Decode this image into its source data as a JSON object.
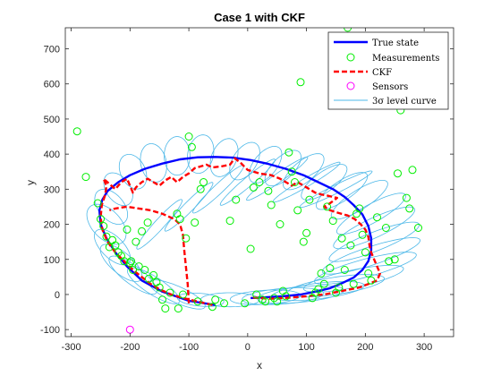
{
  "chart_data": {
    "type": "line",
    "title": "Case 1 with CKF",
    "xlabel": "x",
    "ylabel": "y",
    "xlim": [
      -310,
      350
    ],
    "ylim": [
      -120,
      760
    ],
    "xticks": [
      -300,
      -200,
      -100,
      0,
      100,
      200,
      300
    ],
    "yticks": [
      -100,
      0,
      100,
      200,
      300,
      400,
      500,
      600,
      700
    ],
    "grid": false,
    "legend_position": "top-right",
    "colors": {
      "true_state": "#0000ff",
      "measurements": "#00ee00",
      "ckf": "#ff0000",
      "sensors": "#ff00ff",
      "level_curve": "#4db8e8"
    },
    "series": [
      {
        "name": "True state",
        "points": [
          [
            -55,
            -30
          ],
          [
            -100,
            -18
          ],
          [
            -145,
            8
          ],
          [
            -180,
            40
          ],
          [
            -205,
            80
          ],
          [
            -225,
            120
          ],
          [
            -240,
            160
          ],
          [
            -250,
            200
          ],
          [
            -252,
            240
          ],
          [
            -247,
            270
          ],
          [
            -238,
            295
          ],
          [
            -220,
            320
          ],
          [
            -200,
            340
          ],
          [
            -175,
            358
          ],
          [
            -145,
            373
          ],
          [
            -115,
            385
          ],
          [
            -85,
            391
          ],
          [
            -55,
            392
          ],
          [
            -25,
            390
          ],
          [
            5,
            383
          ],
          [
            35,
            372
          ],
          [
            65,
            358
          ],
          [
            95,
            340
          ],
          [
            120,
            320
          ],
          [
            145,
            300
          ],
          [
            165,
            278
          ],
          [
            180,
            255
          ],
          [
            195,
            228
          ],
          [
            205,
            195
          ],
          [
            210,
            160
          ],
          [
            210,
            125
          ],
          [
            205,
            95
          ],
          [
            195,
            70
          ],
          [
            180,
            48
          ],
          [
            160,
            32
          ],
          [
            140,
            18
          ],
          [
            115,
            8
          ],
          [
            90,
            0
          ],
          [
            60,
            -5
          ],
          [
            30,
            -8
          ],
          [
            5,
            -10
          ]
        ]
      },
      {
        "name": "Measurements",
        "points": [
          [
            -290,
            465
          ],
          [
            -275,
            335
          ],
          [
            -255,
            260
          ],
          [
            -250,
            215
          ],
          [
            -245,
            195
          ],
          [
            -240,
            165
          ],
          [
            -235,
            135
          ],
          [
            -230,
            155
          ],
          [
            -225,
            140
          ],
          [
            -220,
            120
          ],
          [
            -215,
            110
          ],
          [
            -210,
            95
          ],
          [
            -205,
            185
          ],
          [
            -200,
            90
          ],
          [
            -198,
            95
          ],
          [
            -195,
            70
          ],
          [
            -190,
            150
          ],
          [
            -185,
            80
          ],
          [
            -180,
            180
          ],
          [
            -175,
            70
          ],
          [
            -170,
            205
          ],
          [
            -168,
            45
          ],
          [
            -160,
            55
          ],
          [
            -155,
            35
          ],
          [
            -150,
            20
          ],
          [
            -145,
            -15
          ],
          [
            -140,
            -40
          ],
          [
            -132,
            5
          ],
          [
            -120,
            230
          ],
          [
            -118,
            -40
          ],
          [
            -115,
            215
          ],
          [
            -110,
            0
          ],
          [
            -105,
            160
          ],
          [
            -100,
            450
          ],
          [
            -95,
            420
          ],
          [
            -90,
            205
          ],
          [
            -85,
            -20
          ],
          [
            -80,
            300
          ],
          [
            -75,
            320
          ],
          [
            -60,
            -35
          ],
          [
            -55,
            -15
          ],
          [
            -40,
            -25
          ],
          [
            -30,
            210
          ],
          [
            -20,
            270
          ],
          [
            -5,
            -25
          ],
          [
            5,
            130
          ],
          [
            10,
            305
          ],
          [
            15,
            0
          ],
          [
            20,
            320
          ],
          [
            25,
            -15
          ],
          [
            30,
            -20
          ],
          [
            35,
            295
          ],
          [
            40,
            255
          ],
          [
            45,
            -10
          ],
          [
            50,
            -20
          ],
          [
            55,
            200
          ],
          [
            60,
            10
          ],
          [
            65,
            -5
          ],
          [
            70,
            405
          ],
          [
            75,
            350
          ],
          [
            80,
            320
          ],
          [
            85,
            240
          ],
          [
            90,
            605
          ],
          [
            95,
            150
          ],
          [
            100,
            175
          ],
          [
            105,
            270
          ],
          [
            110,
            -10
          ],
          [
            115,
            5
          ],
          [
            120,
            15
          ],
          [
            125,
            60
          ],
          [
            130,
            30
          ],
          [
            135,
            250
          ],
          [
            140,
            75
          ],
          [
            145,
            210
          ],
          [
            150,
            5
          ],
          [
            155,
            20
          ],
          [
            160,
            160
          ],
          [
            165,
            70
          ],
          [
            170,
            760
          ],
          [
            175,
            140
          ],
          [
            180,
            30
          ],
          [
            185,
            230
          ],
          [
            190,
            245
          ],
          [
            195,
            170
          ],
          [
            200,
            120
          ],
          [
            205,
            60
          ],
          [
            210,
            40
          ],
          [
            220,
            220
          ],
          [
            235,
            190
          ],
          [
            240,
            95
          ],
          [
            250,
            100
          ],
          [
            255,
            345
          ],
          [
            260,
            525
          ],
          [
            270,
            275
          ],
          [
            275,
            245
          ],
          [
            280,
            355
          ],
          [
            290,
            190
          ]
        ]
      },
      {
        "name": "CKF",
        "points": [
          [
            -60,
            -30
          ],
          [
            -85,
            -20
          ],
          [
            -110,
            -10
          ],
          [
            -130,
            0
          ],
          [
            -150,
            15
          ],
          [
            -165,
            30
          ],
          [
            -180,
            50
          ],
          [
            -195,
            70
          ],
          [
            -210,
            95
          ],
          [
            -225,
            120
          ],
          [
            -238,
            150
          ],
          [
            -247,
            185
          ],
          [
            -250,
            220
          ],
          [
            -248,
            255
          ],
          [
            -242,
            285
          ],
          [
            -240,
            310
          ],
          [
            -245,
            330
          ],
          [
            -235,
            315
          ],
          [
            -225,
            300
          ],
          [
            -215,
            320
          ],
          [
            -205,
            330
          ],
          [
            -200,
            310
          ],
          [
            -195,
            290
          ],
          [
            -190,
            305
          ],
          [
            -180,
            320
          ],
          [
            -170,
            330
          ],
          [
            -160,
            320
          ],
          [
            -150,
            310
          ],
          [
            -140,
            325
          ],
          [
            -130,
            335
          ],
          [
            -120,
            320
          ],
          [
            -110,
            335
          ],
          [
            -100,
            345
          ],
          [
            -90,
            360
          ],
          [
            -80,
            365
          ],
          [
            -70,
            370
          ],
          [
            -60,
            362
          ],
          [
            -45,
            365
          ],
          [
            -30,
            370
          ],
          [
            -22,
            388
          ],
          [
            -12,
            375
          ],
          [
            0,
            355
          ],
          [
            20,
            345
          ],
          [
            40,
            340
          ],
          [
            55,
            330
          ],
          [
            65,
            320
          ],
          [
            75,
            310
          ],
          [
            85,
            320
          ],
          [
            95,
            310
          ],
          [
            105,
            300
          ],
          [
            115,
            290
          ],
          [
            125,
            285
          ],
          [
            135,
            282
          ],
          [
            145,
            278
          ],
          [
            152,
            275
          ],
          [
            140,
            260
          ],
          [
            130,
            250
          ],
          [
            140,
            240
          ],
          [
            155,
            232
          ],
          [
            170,
            225
          ],
          [
            182,
            215
          ],
          [
            192,
            200
          ],
          [
            200,
            185
          ],
          [
            205,
            165
          ],
          [
            207,
            140
          ],
          [
            210,
            120
          ],
          [
            215,
            100
          ],
          [
            220,
            80
          ],
          [
            225,
            60
          ],
          [
            220,
            40
          ],
          [
            205,
            30
          ],
          [
            190,
            20
          ],
          [
            175,
            15
          ],
          [
            160,
            10
          ],
          [
            145,
            5
          ],
          [
            130,
            0
          ],
          [
            115,
            -2
          ],
          [
            100,
            -5
          ],
          [
            80,
            -8
          ],
          [
            60,
            -10
          ],
          [
            40,
            -12
          ],
          [
            20,
            -10
          ],
          [
            5,
            -8
          ]
        ]
      },
      {
        "name": "CKF",
        "points": [
          [
            -100,
            -25
          ],
          [
            -102,
            30
          ],
          [
            -105,
            80
          ],
          [
            -108,
            130
          ],
          [
            -110,
            170
          ],
          [
            -115,
            200
          ],
          [
            -125,
            215
          ],
          [
            -145,
            230
          ],
          [
            -165,
            240
          ],
          [
            -185,
            245
          ],
          [
            -205,
            250
          ],
          [
            -225,
            245
          ],
          [
            -235,
            240
          ]
        ]
      },
      {
        "name": "Sensors",
        "points": [
          [
            -200,
            -100
          ]
        ]
      }
    ],
    "level_curves": [
      [
        -240,
        200,
        60,
        28,
        110
      ],
      [
        -232,
        250,
        52,
        24,
        108
      ],
      [
        -220,
        300,
        48,
        22,
        105
      ],
      [
        -195,
        350,
        50,
        22,
        100
      ],
      [
        -160,
        375,
        55,
        22,
        95
      ],
      [
        -120,
        395,
        55,
        22,
        90
      ],
      [
        -80,
        400,
        55,
        22,
        85
      ],
      [
        -40,
        390,
        55,
        22,
        80
      ],
      [
        -5,
        380,
        55,
        22,
        75
      ],
      [
        30,
        370,
        55,
        22,
        70
      ],
      [
        60,
        360,
        55,
        22,
        65
      ],
      [
        95,
        350,
        58,
        22,
        60
      ],
      [
        130,
        320,
        60,
        22,
        55
      ],
      [
        160,
        295,
        65,
        22,
        52
      ],
      [
        190,
        270,
        70,
        22,
        50
      ],
      [
        210,
        230,
        80,
        22,
        45
      ],
      [
        215,
        190,
        88,
        24,
        40
      ],
      [
        215,
        150,
        92,
        24,
        35
      ],
      [
        210,
        110,
        95,
        24,
        30
      ],
      [
        200,
        75,
        95,
        24,
        25
      ],
      [
        180,
        45,
        90,
        24,
        20
      ],
      [
        150,
        25,
        85,
        24,
        15
      ],
      [
        120,
        10,
        80,
        22,
        12
      ],
      [
        90,
        0,
        75,
        22,
        10
      ],
      [
        60,
        -5,
        70,
        22,
        8
      ],
      [
        30,
        -8,
        60,
        20,
        6
      ],
      [
        -30,
        -15,
        50,
        20,
        0
      ],
      [
        -80,
        -15,
        40,
        18,
        170
      ],
      [
        -120,
        0,
        60,
        20,
        140
      ],
      [
        -160,
        25,
        65,
        20,
        130
      ],
      [
        -195,
        55,
        65,
        20,
        125
      ],
      [
        -215,
        90,
        60,
        22,
        120
      ],
      [
        -230,
        135,
        55,
        22,
        115
      ],
      [
        -150,
        200,
        80,
        10,
        62
      ],
      [
        -100,
        250,
        80,
        10,
        60
      ],
      [
        -50,
        300,
        80,
        10,
        58
      ],
      [
        0,
        320,
        80,
        10,
        55
      ],
      [
        50,
        330,
        80,
        10,
        50
      ],
      [
        100,
        320,
        80,
        10,
        45
      ],
      [
        150,
        300,
        80,
        10,
        40
      ]
    ],
    "legend_entries": [
      "True state",
      "Measurements",
      "CKF",
      "Sensors",
      "3σ level curve"
    ]
  }
}
